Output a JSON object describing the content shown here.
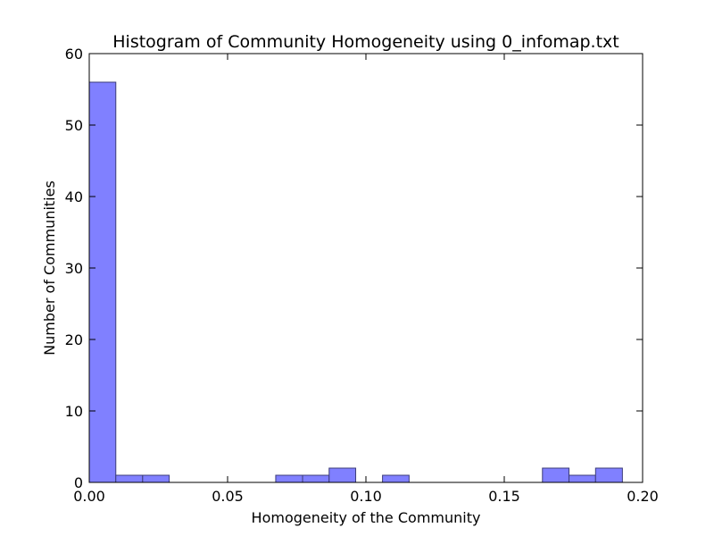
{
  "chart_data": {
    "type": "bar",
    "title": "Histogram of Community Homogeneity using 0_infomap.txt",
    "xlabel": "Homogeneity of the Community",
    "ylabel": "Number of Communities",
    "xlim": [
      0.0,
      0.2
    ],
    "ylim": [
      0,
      60
    ],
    "x_ticks": [
      "0.00",
      "0.05",
      "0.10",
      "0.15",
      "0.20"
    ],
    "y_ticks": [
      "0",
      "10",
      "20",
      "30",
      "40",
      "50",
      "60"
    ],
    "grid": false,
    "bar_color": "#8080ff",
    "bar_edge_color": "#3c3c78",
    "bins": [
      {
        "x0": 0.0,
        "x1": 0.0096,
        "count": 56
      },
      {
        "x0": 0.0096,
        "x1": 0.0193,
        "count": 1
      },
      {
        "x0": 0.0193,
        "x1": 0.0289,
        "count": 1
      },
      {
        "x0": 0.0289,
        "x1": 0.0385,
        "count": 0
      },
      {
        "x0": 0.0385,
        "x1": 0.0482,
        "count": 0
      },
      {
        "x0": 0.0482,
        "x1": 0.0578,
        "count": 0
      },
      {
        "x0": 0.0578,
        "x1": 0.0674,
        "count": 0
      },
      {
        "x0": 0.0674,
        "x1": 0.0771,
        "count": 1
      },
      {
        "x0": 0.0771,
        "x1": 0.0867,
        "count": 1
      },
      {
        "x0": 0.0867,
        "x1": 0.0963,
        "count": 2
      },
      {
        "x0": 0.0963,
        "x1": 0.106,
        "count": 0
      },
      {
        "x0": 0.106,
        "x1": 0.1156,
        "count": 1
      },
      {
        "x0": 0.1156,
        "x1": 0.1252,
        "count": 0
      },
      {
        "x0": 0.1252,
        "x1": 0.1349,
        "count": 0
      },
      {
        "x0": 0.1349,
        "x1": 0.1445,
        "count": 0
      },
      {
        "x0": 0.1445,
        "x1": 0.1541,
        "count": 0
      },
      {
        "x0": 0.1541,
        "x1": 0.1638,
        "count": 0
      },
      {
        "x0": 0.1638,
        "x1": 0.1734,
        "count": 2
      },
      {
        "x0": 0.1734,
        "x1": 0.183,
        "count": 1
      },
      {
        "x0": 0.183,
        "x1": 0.1927,
        "count": 2
      }
    ]
  }
}
